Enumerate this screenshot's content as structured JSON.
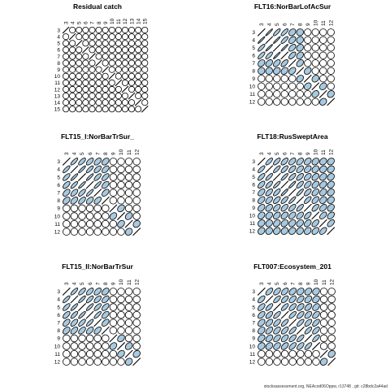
{
  "footer": "stocksassessment.org, NEAcod06Oppw, r13748 , git: c28bdc2a44ad",
  "colors": {
    "positive_fill": "#a8c9df",
    "outline": "#000000",
    "background": "#ffffff"
  },
  "chart_data": [
    {
      "type": "heatmap",
      "style": "ellipse-correlogram",
      "title": "Residual catch",
      "labels": [
        "3",
        "4",
        "5",
        "6",
        "7",
        "8",
        "9",
        "10",
        "11",
        "12",
        "13",
        "14",
        "15"
      ],
      "values": [
        [
          1,
          0,
          0,
          0,
          0,
          0,
          0,
          0,
          0,
          0,
          0,
          0,
          0
        ],
        [
          0,
          1,
          0,
          0,
          0,
          0,
          0,
          0,
          0,
          0,
          0,
          0,
          0
        ],
        [
          0,
          0,
          1,
          0,
          0,
          0,
          0,
          0,
          0,
          0,
          0,
          0,
          0
        ],
        [
          0,
          0,
          0,
          1,
          0,
          0,
          0,
          0,
          0,
          0,
          0,
          0,
          0
        ],
        [
          0,
          0,
          0,
          0,
          1,
          0,
          0,
          0,
          0,
          0,
          0,
          0,
          0
        ],
        [
          0,
          0,
          0,
          0,
          0,
          1,
          0,
          0,
          0,
          0,
          0,
          0,
          0
        ],
        [
          0,
          0,
          0,
          0,
          0,
          0,
          1,
          0,
          0,
          0,
          0,
          0,
          0
        ],
        [
          0,
          0,
          0,
          0,
          0,
          0,
          0,
          1,
          0,
          0,
          0,
          0,
          0
        ],
        [
          0,
          0,
          0,
          0,
          0,
          0,
          0,
          0,
          1,
          0,
          0,
          0,
          0
        ],
        [
          0,
          0,
          0,
          0,
          0,
          0,
          0,
          0,
          0,
          1,
          0,
          0,
          0
        ],
        [
          0,
          0,
          0,
          0,
          0,
          0,
          0,
          0,
          0,
          0,
          1,
          0,
          0
        ],
        [
          0,
          0,
          0,
          0,
          0,
          0,
          0,
          0,
          0,
          0,
          0,
          1,
          0
        ],
        [
          0,
          0,
          0,
          0,
          0,
          0,
          0,
          0,
          0,
          0,
          0,
          0,
          1
        ]
      ]
    },
    {
      "type": "heatmap",
      "style": "ellipse-correlogram",
      "title": "FLT16:NorBarLofAcSur",
      "labels": [
        "3",
        "4",
        "5",
        "6",
        "7",
        "8",
        "9",
        "10",
        "11",
        "12"
      ],
      "values": [
        [
          1,
          0.95,
          0.8,
          0.75,
          0.3,
          0.05,
          0,
          0,
          0,
          0
        ],
        [
          0.95,
          1,
          0.95,
          0.75,
          0.4,
          0.1,
          0,
          0,
          0,
          0
        ],
        [
          0.8,
          0.95,
          1,
          0.95,
          0.5,
          0.2,
          0,
          0,
          0,
          0
        ],
        [
          0.75,
          0.75,
          0.95,
          1,
          0.6,
          0.3,
          0,
          0,
          0,
          0
        ],
        [
          0.3,
          0.4,
          0.5,
          0.6,
          1,
          0.35,
          0,
          0,
          0,
          0
        ],
        [
          0.05,
          0.1,
          0.2,
          0.3,
          0.35,
          1,
          0.3,
          0,
          0,
          0
        ],
        [
          0,
          0,
          0,
          0,
          0,
          0.3,
          1,
          0.25,
          0,
          0
        ],
        [
          0,
          0,
          0,
          0,
          0,
          0,
          0.25,
          1,
          0.25,
          0
        ],
        [
          0,
          0,
          0,
          0,
          0,
          0,
          0,
          0.25,
          1,
          0.2
        ],
        [
          0,
          0,
          0,
          0,
          0,
          0,
          0,
          0,
          0.2,
          1
        ]
      ]
    },
    {
      "type": "heatmap",
      "style": "ellipse-correlogram",
      "title": "FLT15_I:NorBarTrSur_",
      "labels": [
        "3",
        "4",
        "5",
        "6",
        "7",
        "8",
        "9",
        "10",
        "11",
        "12"
      ],
      "values": [
        [
          1,
          0.8,
          0.7,
          0.6,
          0.5,
          0.4,
          0,
          0,
          0,
          0
        ],
        [
          0.8,
          1,
          0.9,
          0.8,
          0.6,
          0.5,
          0,
          0,
          0,
          0
        ],
        [
          0.7,
          0.9,
          1,
          0.9,
          0.7,
          0.6,
          0,
          0,
          0,
          0
        ],
        [
          0.6,
          0.8,
          0.9,
          1,
          0.85,
          0.5,
          0,
          0,
          0,
          0
        ],
        [
          0.5,
          0.6,
          0.7,
          0.85,
          1,
          0.5,
          0,
          0,
          0,
          0
        ],
        [
          0.4,
          0.5,
          0.6,
          0.5,
          0.5,
          1,
          0,
          0,
          0,
          0
        ],
        [
          0,
          0,
          0,
          0,
          0,
          0,
          1,
          0.3,
          0,
          0
        ],
        [
          0,
          0,
          0,
          0,
          0,
          0,
          0.3,
          1,
          0.3,
          0
        ],
        [
          0,
          0,
          0,
          0,
          0,
          0,
          0,
          0.3,
          1,
          0.2
        ],
        [
          0,
          0,
          0,
          0,
          0,
          0,
          0,
          0,
          0.2,
          1
        ]
      ]
    },
    {
      "type": "heatmap",
      "style": "ellipse-correlogram",
      "title": "FLT18:RusSweptArea",
      "labels": [
        "3",
        "4",
        "5",
        "6",
        "7",
        "8",
        "9",
        "10",
        "11",
        "12"
      ],
      "values": [
        [
          1,
          0.75,
          0.7,
          0.6,
          0.5,
          0.45,
          0.35,
          0.3,
          0.2,
          0.2
        ],
        [
          0.75,
          1,
          0.8,
          0.7,
          0.6,
          0.5,
          0.4,
          0.3,
          0.2,
          0.2
        ],
        [
          0.7,
          0.8,
          1,
          0.85,
          0.7,
          0.6,
          0.5,
          0.4,
          0.3,
          0.2
        ],
        [
          0.6,
          0.7,
          0.85,
          1,
          0.9,
          0.7,
          0.55,
          0.4,
          0.3,
          0.2
        ],
        [
          0.5,
          0.6,
          0.7,
          0.9,
          1,
          0.85,
          0.6,
          0.45,
          0.3,
          0.2
        ],
        [
          0.45,
          0.5,
          0.6,
          0.7,
          0.85,
          1,
          0.7,
          0.5,
          0.3,
          0.2
        ],
        [
          0.35,
          0.4,
          0.5,
          0.55,
          0.6,
          0.7,
          1,
          0.6,
          0.4,
          0.3
        ],
        [
          0.3,
          0.3,
          0.4,
          0.4,
          0.45,
          0.5,
          0.6,
          1,
          0.5,
          0.4
        ],
        [
          0.2,
          0.2,
          0.3,
          0.3,
          0.3,
          0.3,
          0.4,
          0.5,
          1,
          0.5
        ],
        [
          0.2,
          0.2,
          0.2,
          0.2,
          0.2,
          0.2,
          0.3,
          0.4,
          0.5,
          1
        ]
      ]
    },
    {
      "type": "heatmap",
      "style": "ellipse-correlogram",
      "title": "FLT15_II:NorBarTrSur",
      "labels": [
        "3",
        "4",
        "5",
        "6",
        "7",
        "8",
        "9",
        "10",
        "11",
        "12"
      ],
      "values": [
        [
          1,
          0.8,
          0.7,
          0.6,
          0.5,
          0.4,
          0,
          0,
          0,
          0
        ],
        [
          0.8,
          1,
          0.85,
          0.75,
          0.6,
          0.5,
          0,
          0,
          0,
          0
        ],
        [
          0.7,
          0.85,
          1,
          0.85,
          0.7,
          0.55,
          0,
          0,
          0,
          0
        ],
        [
          0.6,
          0.75,
          0.85,
          1,
          0.8,
          0.5,
          0,
          0,
          0,
          0
        ],
        [
          0.5,
          0.6,
          0.7,
          0.8,
          1,
          0.5,
          0,
          0,
          0,
          0
        ],
        [
          0.4,
          0.5,
          0.55,
          0.5,
          0.5,
          1,
          0,
          0,
          0,
          0
        ],
        [
          0,
          0,
          0,
          0,
          0,
          0,
          1,
          0.3,
          0,
          0
        ],
        [
          0,
          0,
          0,
          0,
          0,
          0,
          0.3,
          1,
          0.3,
          0
        ],
        [
          0,
          0,
          0,
          0,
          0,
          0,
          0,
          0.3,
          1,
          0.2
        ],
        [
          0,
          0,
          0,
          0,
          0,
          0,
          0,
          0,
          0.2,
          1
        ]
      ]
    },
    {
      "type": "heatmap",
      "style": "ellipse-correlogram",
      "title": "FLT007:Ecosystem_201",
      "labels": [
        "3",
        "4",
        "5",
        "6",
        "7",
        "8",
        "9",
        "10",
        "11",
        "12"
      ],
      "values": [
        [
          1,
          0.6,
          0.55,
          0.5,
          0.4,
          0.3,
          0.3,
          0.2,
          0,
          0
        ],
        [
          0.6,
          1,
          0.7,
          0.6,
          0.5,
          0.5,
          0.4,
          0.3,
          0,
          0
        ],
        [
          0.55,
          0.7,
          1,
          0.7,
          0.6,
          0.5,
          0.5,
          0.4,
          0,
          0
        ],
        [
          0.5,
          0.6,
          0.7,
          1,
          0.7,
          0.6,
          0.5,
          0.5,
          0,
          0
        ],
        [
          0.4,
          0.5,
          0.6,
          0.7,
          1,
          0.7,
          0.6,
          0.6,
          0,
          0
        ],
        [
          0.3,
          0.5,
          0.5,
          0.6,
          0.7,
          1,
          0.7,
          0.6,
          0,
          0
        ],
        [
          0.3,
          0.4,
          0.5,
          0.5,
          0.6,
          0.7,
          1,
          0.7,
          0,
          0
        ],
        [
          0.2,
          0.3,
          0.4,
          0.5,
          0.6,
          0.6,
          0.7,
          1,
          0,
          0
        ],
        [
          0,
          0,
          0,
          0,
          0,
          0,
          0,
          0,
          1,
          0.2
        ],
        [
          0,
          0,
          0,
          0,
          0,
          0,
          0,
          0,
          0.2,
          1
        ]
      ]
    }
  ]
}
